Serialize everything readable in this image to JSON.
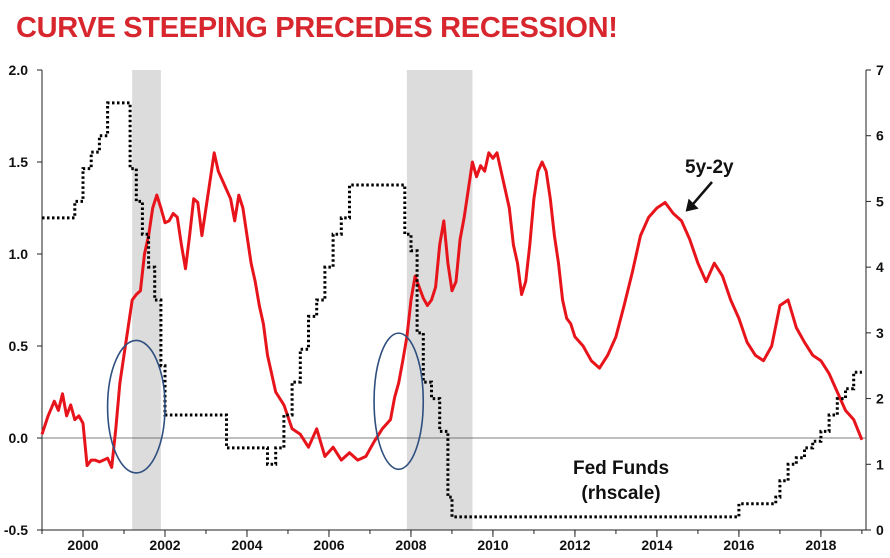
{
  "title": "CURVE STEEPING PRECEDES RECESSION!",
  "chart_data": {
    "type": "line",
    "title": "CURVE STEEPING PRECEDES RECESSION!",
    "xlabel": "",
    "ylabel": "",
    "xlim": [
      1999.0,
      2019.1
    ],
    "ylim": [
      -0.5,
      2.0
    ],
    "y2lim": [
      0,
      7
    ],
    "grid": false,
    "x_ticks": [
      2000,
      2002,
      2004,
      2006,
      2008,
      2010,
      2012,
      2014,
      2016,
      2018
    ],
    "x_tick_labels": [
      "2000",
      "2002",
      "2004",
      "2006",
      "2008",
      "2010",
      "2012",
      "2014",
      "2016",
      "2018"
    ],
    "y_ticks": [
      -0.5,
      0.0,
      0.5,
      1.0,
      1.5,
      2.0
    ],
    "y_tick_labels": [
      "-0.5",
      "0.0",
      "0.5",
      "1.0",
      "1.5",
      "2.0"
    ],
    "y2_ticks": [
      0,
      1,
      2,
      3,
      4,
      5,
      6,
      7
    ],
    "y2_tick_labels": [
      "0",
      "1",
      "2",
      "3",
      "4",
      "5",
      "6",
      "7"
    ],
    "recessions": [
      {
        "start": 2001.2,
        "end": 2001.9
      },
      {
        "start": 2007.9,
        "end": 2009.5
      }
    ],
    "highlights": [
      {
        "cx": 2001.3,
        "cy": 0.17,
        "rx": 0.7,
        "ry": 0.36
      },
      {
        "cx": 2007.7,
        "cy": 0.2,
        "rx": 0.6,
        "ry": 0.37
      }
    ],
    "series": [
      {
        "name": "5y-2y",
        "axis": "left",
        "color": "#e8141b",
        "style": "solid",
        "x": [
          1999.0,
          1999.15,
          1999.3,
          1999.4,
          1999.5,
          1999.6,
          1999.7,
          1999.8,
          1999.9,
          2000.0,
          2000.1,
          2000.2,
          2000.3,
          2000.4,
          2000.5,
          2000.6,
          2000.7,
          2000.8,
          2000.9,
          2001.0,
          2001.1,
          2001.2,
          2001.3,
          2001.4,
          2001.5,
          2001.6,
          2001.7,
          2001.8,
          2001.9,
          2002.0,
          2002.1,
          2002.2,
          2002.3,
          2002.4,
          2002.5,
          2002.6,
          2002.7,
          2002.8,
          2002.9,
          2003.0,
          2003.1,
          2003.2,
          2003.3,
          2003.4,
          2003.5,
          2003.6,
          2003.7,
          2003.8,
          2003.9,
          2004.0,
          2004.1,
          2004.2,
          2004.3,
          2004.4,
          2004.5,
          2004.7,
          2004.9,
          2005.1,
          2005.3,
          2005.5,
          2005.7,
          2005.9,
          2006.1,
          2006.3,
          2006.5,
          2006.7,
          2006.9,
          2007.1,
          2007.3,
          2007.5,
          2007.6,
          2007.7,
          2007.8,
          2007.9,
          2008.0,
          2008.1,
          2008.2,
          2008.3,
          2008.4,
          2008.5,
          2008.6,
          2008.7,
          2008.8,
          2008.9,
          2009.0,
          2009.1,
          2009.2,
          2009.3,
          2009.4,
          2009.5,
          2009.6,
          2009.7,
          2009.8,
          2009.9,
          2010.0,
          2010.1,
          2010.2,
          2010.3,
          2010.4,
          2010.5,
          2010.6,
          2010.7,
          2010.8,
          2010.9,
          2011.0,
          2011.1,
          2011.2,
          2011.3,
          2011.4,
          2011.5,
          2011.6,
          2011.7,
          2011.8,
          2011.9,
          2012.0,
          2012.2,
          2012.4,
          2012.6,
          2012.8,
          2013.0,
          2013.2,
          2013.4,
          2013.6,
          2013.8,
          2014.0,
          2014.2,
          2014.4,
          2014.6,
          2014.8,
          2015.0,
          2015.2,
          2015.4,
          2015.6,
          2015.8,
          2016.0,
          2016.2,
          2016.4,
          2016.6,
          2016.8,
          2017.0,
          2017.2,
          2017.4,
          2017.6,
          2017.8,
          2018.0,
          2018.2,
          2018.4,
          2018.6,
          2018.8,
          2019.0
        ],
        "values": [
          0.02,
          0.12,
          0.2,
          0.15,
          0.24,
          0.12,
          0.18,
          0.1,
          0.12,
          0.08,
          -0.15,
          -0.12,
          -0.12,
          -0.13,
          -0.12,
          -0.11,
          -0.16,
          0.05,
          0.3,
          0.45,
          0.6,
          0.75,
          0.78,
          0.8,
          1.0,
          1.1,
          1.25,
          1.32,
          1.25,
          1.17,
          1.18,
          1.22,
          1.2,
          1.05,
          0.92,
          1.1,
          1.3,
          1.28,
          1.1,
          1.25,
          1.4,
          1.55,
          1.45,
          1.4,
          1.35,
          1.3,
          1.18,
          1.32,
          1.25,
          1.1,
          0.95,
          0.85,
          0.72,
          0.62,
          0.45,
          0.25,
          0.18,
          0.05,
          0.02,
          -0.05,
          0.05,
          -0.1,
          -0.05,
          -0.12,
          -0.08,
          -0.12,
          -0.1,
          -0.02,
          0.05,
          0.1,
          0.22,
          0.3,
          0.42,
          0.55,
          0.75,
          0.88,
          0.82,
          0.76,
          0.72,
          0.75,
          0.82,
          1.05,
          1.18,
          0.95,
          0.8,
          0.85,
          1.08,
          1.2,
          1.35,
          1.5,
          1.42,
          1.48,
          1.45,
          1.55,
          1.52,
          1.55,
          1.45,
          1.35,
          1.25,
          1.05,
          0.95,
          0.78,
          0.85,
          1.05,
          1.3,
          1.45,
          1.5,
          1.45,
          1.3,
          1.1,
          0.95,
          0.75,
          0.65,
          0.62,
          0.55,
          0.5,
          0.42,
          0.38,
          0.45,
          0.55,
          0.72,
          0.9,
          1.1,
          1.2,
          1.25,
          1.28,
          1.22,
          1.18,
          1.08,
          0.95,
          0.85,
          0.95,
          0.88,
          0.75,
          0.65,
          0.52,
          0.45,
          0.42,
          0.5,
          0.72,
          0.75,
          0.6,
          0.52,
          0.45,
          0.42,
          0.35,
          0.25,
          0.15,
          0.1,
          -0.01
        ]
      },
      {
        "name": "Fed Funds (rhscale)",
        "axis": "right",
        "color": "#000000",
        "style": "dotted",
        "x": [
          1999.0,
          1999.5,
          1999.8,
          2000.0,
          2000.2,
          2000.4,
          2000.6,
          2000.8,
          2001.0,
          2001.15,
          2001.3,
          2001.45,
          2001.6,
          2001.75,
          2001.9,
          2002.0,
          2002.9,
          2003.5,
          2004.5,
          2004.7,
          2004.9,
          2005.1,
          2005.3,
          2005.5,
          2005.7,
          2005.9,
          2006.1,
          2006.3,
          2006.5,
          2007.7,
          2007.85,
          2008.0,
          2008.15,
          2008.3,
          2008.5,
          2008.7,
          2008.9,
          2009.0,
          2015.9,
          2016.0,
          2016.9,
          2017.0,
          2017.2,
          2017.4,
          2017.6,
          2017.8,
          2018.0,
          2018.2,
          2018.4,
          2018.6,
          2018.8,
          2019.0
        ],
        "values": [
          4.75,
          4.75,
          5.0,
          5.5,
          5.75,
          6.0,
          6.5,
          6.5,
          6.5,
          5.5,
          5.0,
          4.5,
          4.0,
          3.5,
          2.5,
          1.75,
          1.75,
          1.25,
          1.0,
          1.25,
          1.75,
          2.25,
          2.75,
          3.25,
          3.5,
          4.0,
          4.5,
          4.75,
          5.25,
          5.25,
          4.5,
          4.25,
          3.0,
          2.25,
          2.0,
          1.5,
          0.5,
          0.2,
          0.2,
          0.4,
          0.5,
          0.75,
          1.0,
          1.1,
          1.25,
          1.35,
          1.5,
          1.75,
          2.0,
          2.15,
          2.4,
          2.4
        ]
      }
    ],
    "annotations": [
      {
        "text": "5y-2y",
        "x": 2014.7,
        "y": 1.23
      },
      {
        "text": "Fed Funds",
        "line2": "(rhscale)"
      }
    ]
  }
}
